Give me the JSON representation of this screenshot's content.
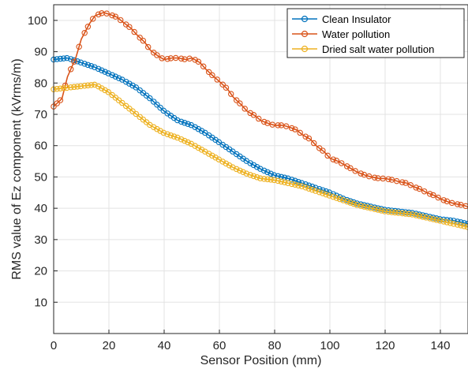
{
  "chart_data": {
    "type": "line",
    "title": "",
    "xlabel": "Sensor Position (mm)",
    "ylabel": "RMS value of Ez component (kVrms/m)",
    "xlim": [
      0,
      150
    ],
    "ylim": [
      0,
      105
    ],
    "xticks": [
      0,
      20,
      40,
      60,
      80,
      100,
      120,
      140
    ],
    "yticks": [
      10,
      20,
      30,
      40,
      50,
      60,
      70,
      80,
      90,
      100
    ],
    "grid": true,
    "legend_position": "top-right",
    "marker": "circle",
    "series": [
      {
        "name": "Clean Insulator",
        "color": "#0072BD",
        "x": [
          0,
          5,
          10,
          15,
          20,
          25,
          30,
          35,
          40,
          45,
          50,
          55,
          60,
          65,
          70,
          75,
          80,
          85,
          90,
          95,
          100,
          105,
          110,
          115,
          120,
          125,
          130,
          135,
          140,
          145,
          150
        ],
        "values": [
          87.5,
          88,
          86.5,
          85,
          83,
          81,
          78.5,
          75,
          71,
          68,
          66.5,
          64,
          61,
          58,
          55,
          52.5,
          50.5,
          49.5,
          48,
          46.5,
          45,
          43,
          41.5,
          40.5,
          39.5,
          39,
          38.5,
          37.5,
          36.5,
          36,
          35
        ]
      },
      {
        "name": "Water pollution",
        "color": "#D95319",
        "x": [
          0,
          3,
          5,
          8,
          10,
          13,
          15,
          18,
          20,
          23,
          25,
          28,
          30,
          33,
          35,
          38,
          40,
          43,
          45,
          48,
          50,
          53,
          55,
          58,
          60,
          63,
          65,
          68,
          70,
          73,
          75,
          78,
          80,
          83,
          85,
          88,
          90,
          93,
          95,
          98,
          100,
          103,
          105,
          108,
          110,
          113,
          115,
          118,
          120,
          123,
          125,
          128,
          130,
          133,
          135,
          138,
          140,
          143,
          145,
          148,
          150
        ],
        "values": [
          72.5,
          75,
          82,
          88,
          94,
          99,
          101.5,
          102.5,
          102,
          101,
          99.5,
          97.5,
          95.5,
          93,
          90.5,
          88.5,
          87.5,
          88,
          88,
          87.5,
          88,
          86.5,
          84.5,
          82,
          80.5,
          78,
          75.5,
          73,
          71,
          69.5,
          68,
          67,
          66.5,
          66.5,
          66,
          65,
          63.5,
          62,
          60,
          58,
          56,
          55,
          54,
          52.5,
          51.5,
          50.5,
          50,
          49.5,
          49.5,
          49,
          48.5,
          48,
          47,
          46,
          45,
          44,
          43,
          42,
          41.5,
          41,
          40.5
        ]
      },
      {
        "name": "Dried salt water pollution",
        "color": "#EDB120",
        "x": [
          0,
          5,
          10,
          15,
          20,
          25,
          30,
          35,
          40,
          45,
          50,
          55,
          60,
          65,
          70,
          75,
          80,
          85,
          90,
          95,
          100,
          105,
          110,
          115,
          120,
          125,
          130,
          135,
          140,
          145,
          150
        ],
        "values": [
          78,
          78.5,
          79,
          79.5,
          77,
          73.5,
          70,
          66.5,
          64,
          62.5,
          60.5,
          58,
          55.5,
          53,
          51,
          49.5,
          49,
          48,
          47,
          45.5,
          44,
          42.5,
          41,
          40,
          39,
          38.5,
          38,
          37,
          36,
          35,
          34
        ]
      }
    ]
  }
}
